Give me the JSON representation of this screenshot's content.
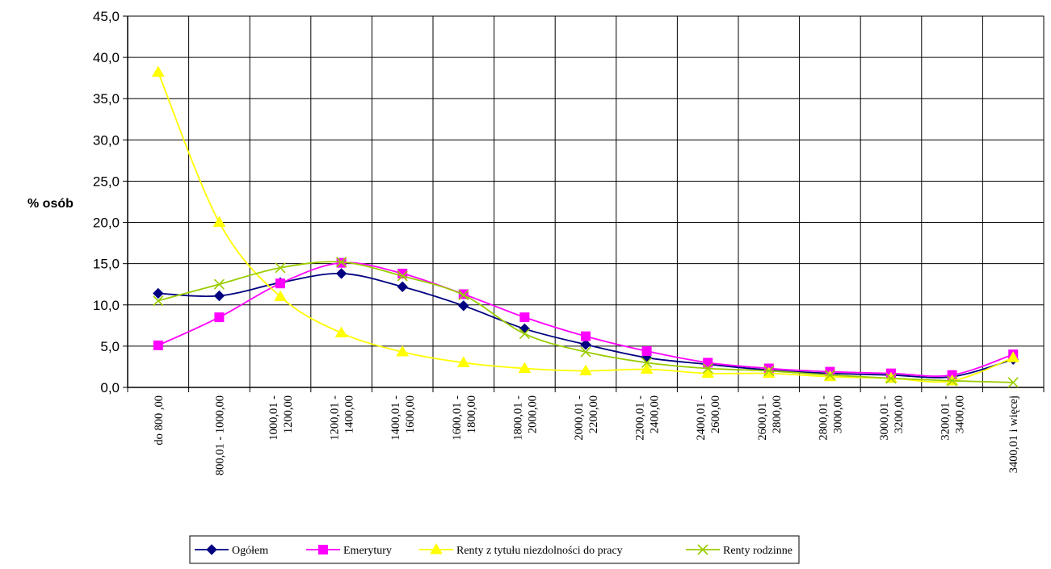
{
  "chart_data": {
    "type": "line",
    "title": "",
    "xlabel": "",
    "ylabel": "% osób",
    "ylim": [
      0,
      45
    ],
    "ytick_step": 5,
    "ytick_labels": [
      "0,0",
      "5,0",
      "10,0",
      "15,0",
      "20,0",
      "25,0",
      "30,0",
      "35,0",
      "40,0",
      "45,0"
    ],
    "grid": true,
    "legend_position": "bottom",
    "categories": [
      [
        "do 800 ,00"
      ],
      [
        "800,01  -  1000,00"
      ],
      [
        "1000,01  -",
        "1200,00"
      ],
      [
        "1200,01  -",
        "1400,00"
      ],
      [
        "1400,01  -",
        "1600,00"
      ],
      [
        "1600,01  -",
        "1800,00"
      ],
      [
        "1800,01  -",
        "2000,00"
      ],
      [
        "2000,01  -",
        "2200,00"
      ],
      [
        "2200,01  -",
        "2400,00"
      ],
      [
        "2400,01  -",
        "2600,00"
      ],
      [
        "2600,01  -",
        "2800,00"
      ],
      [
        "2800,01  -",
        "3000,00"
      ],
      [
        "3000,01  -",
        "3200,00"
      ],
      [
        "3200,01  -",
        "3400,00"
      ],
      [
        "3400,01 i więcej"
      ]
    ],
    "series": [
      {
        "name": "Ogółem",
        "color": "#000080",
        "marker": "diamond",
        "values": [
          11.4,
          11.1,
          12.7,
          13.8,
          12.2,
          9.9,
          7.1,
          5.2,
          3.6,
          2.8,
          2.1,
          1.7,
          1.5,
          1.3,
          3.4
        ]
      },
      {
        "name": "Emerytury",
        "color": "#FF00FF",
        "marker": "square",
        "values": [
          5.1,
          8.5,
          12.6,
          15.1,
          13.8,
          11.3,
          8.5,
          6.2,
          4.4,
          3.0,
          2.3,
          1.9,
          1.7,
          1.5,
          4.0
        ]
      },
      {
        "name": "Renty z tytułu niezdolności do pracy",
        "color": "#FFFF00",
        "marker": "triangle",
        "values": [
          38.2,
          20.0,
          11.0,
          6.6,
          4.3,
          3.0,
          2.3,
          2.0,
          2.2,
          1.7,
          1.7,
          1.3,
          1.1,
          0.8,
          3.6
        ]
      },
      {
        "name": "Renty rodzinne",
        "color": "#99CC00",
        "marker": "x",
        "values": [
          10.5,
          12.5,
          14.5,
          15.2,
          13.5,
          11.2,
          6.5,
          4.3,
          3.0,
          2.3,
          2.0,
          1.5,
          1.1,
          0.8,
          0.6
        ]
      }
    ]
  }
}
